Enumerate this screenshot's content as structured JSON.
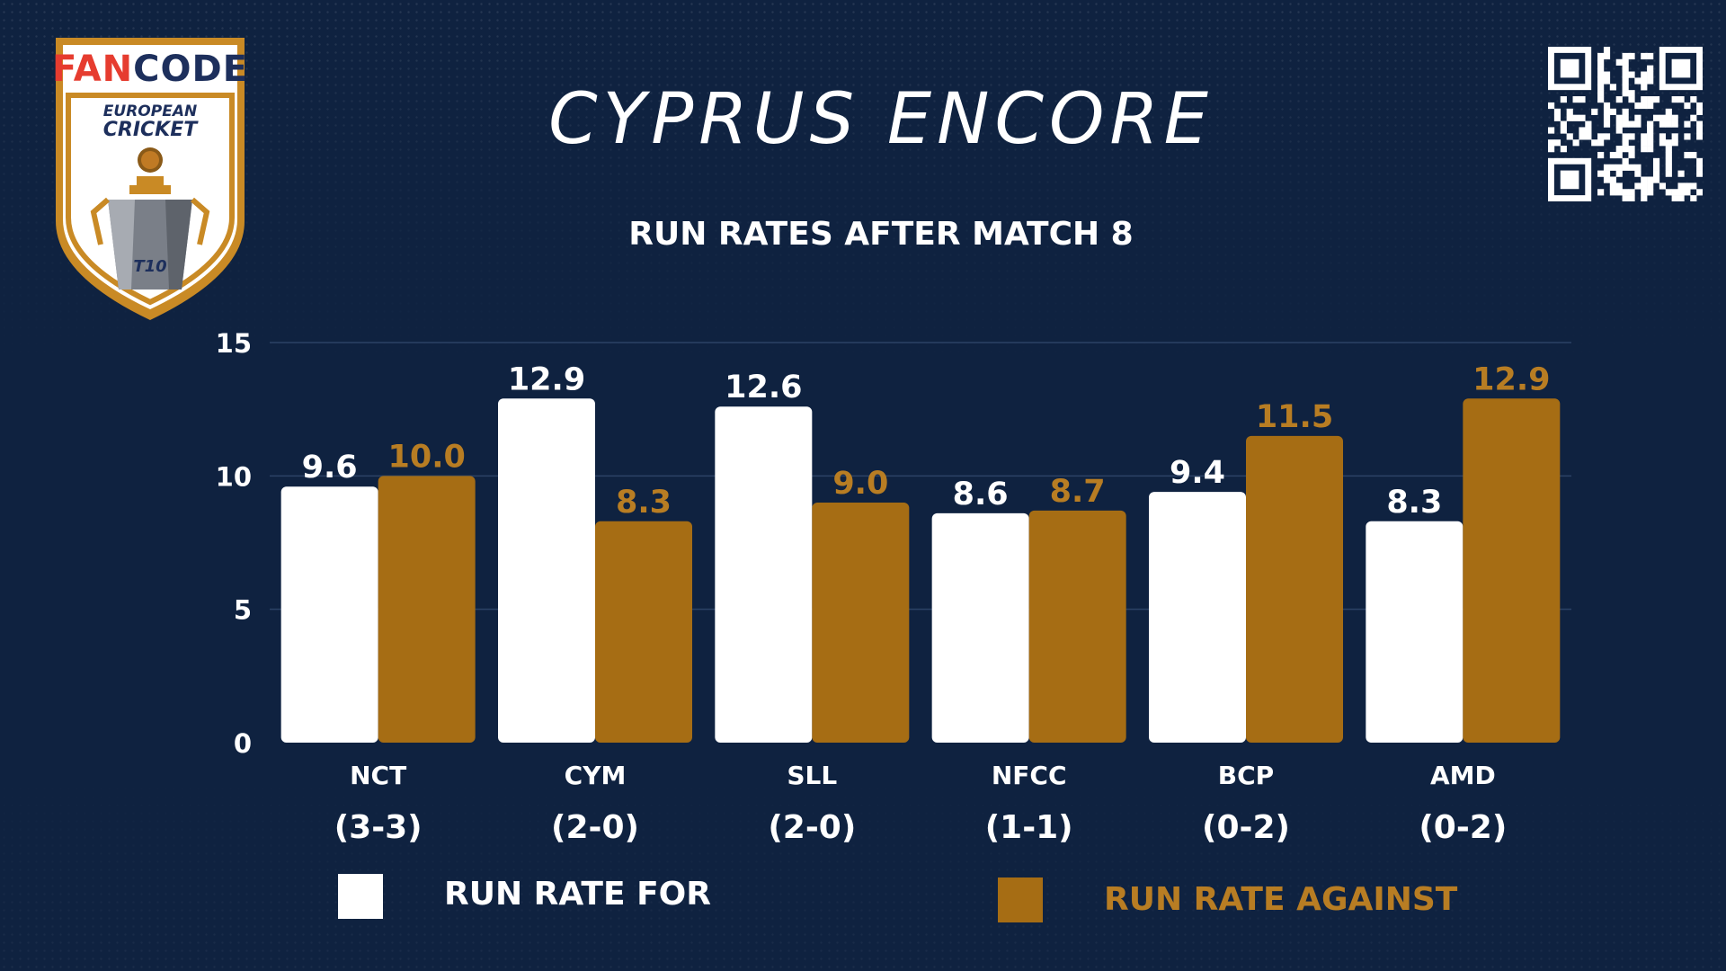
{
  "branding": {
    "brand_fan": "FAN",
    "brand_code": "CODE",
    "sub_line1": "EUROPEAN",
    "sub_line2": "CRICKET",
    "badge": "T10",
    "qr_icon": "qr-code-icon"
  },
  "header": {
    "title": "CYPRUS ENCORE",
    "subtitle": "RUN RATES AFTER MATCH 8"
  },
  "colors": {
    "background": "#0f2240",
    "for": "#ffffff",
    "against": "#a66d14",
    "gold": "#b87d23",
    "grid": "#2c4366"
  },
  "chart_data": {
    "type": "bar",
    "categories": [
      "NCT",
      "CYM",
      "SLL",
      "NFCC",
      "BCP",
      "AMD"
    ],
    "category_records": [
      "(3-3)",
      "(2-0)",
      "(2-0)",
      "(1-1)",
      "(0-2)",
      "(0-2)"
    ],
    "series": [
      {
        "name": "RUN RATE FOR",
        "values": [
          9.6,
          12.9,
          12.6,
          8.6,
          9.4,
          8.3
        ],
        "labels": [
          "9.6",
          "12.9",
          "12.6",
          "8.6",
          "9.4",
          "8.3"
        ]
      },
      {
        "name": "RUN RATE AGAINST",
        "values": [
          10.0,
          8.3,
          9.0,
          8.7,
          11.5,
          12.9
        ],
        "labels": [
          "10.0",
          "8.3",
          "9.0",
          "8.7",
          "11.5",
          "12.9"
        ]
      }
    ],
    "ylim": [
      0,
      15
    ],
    "yticks": [
      "0",
      "5",
      "10",
      "15"
    ],
    "grid": true,
    "legend": "bottom"
  }
}
